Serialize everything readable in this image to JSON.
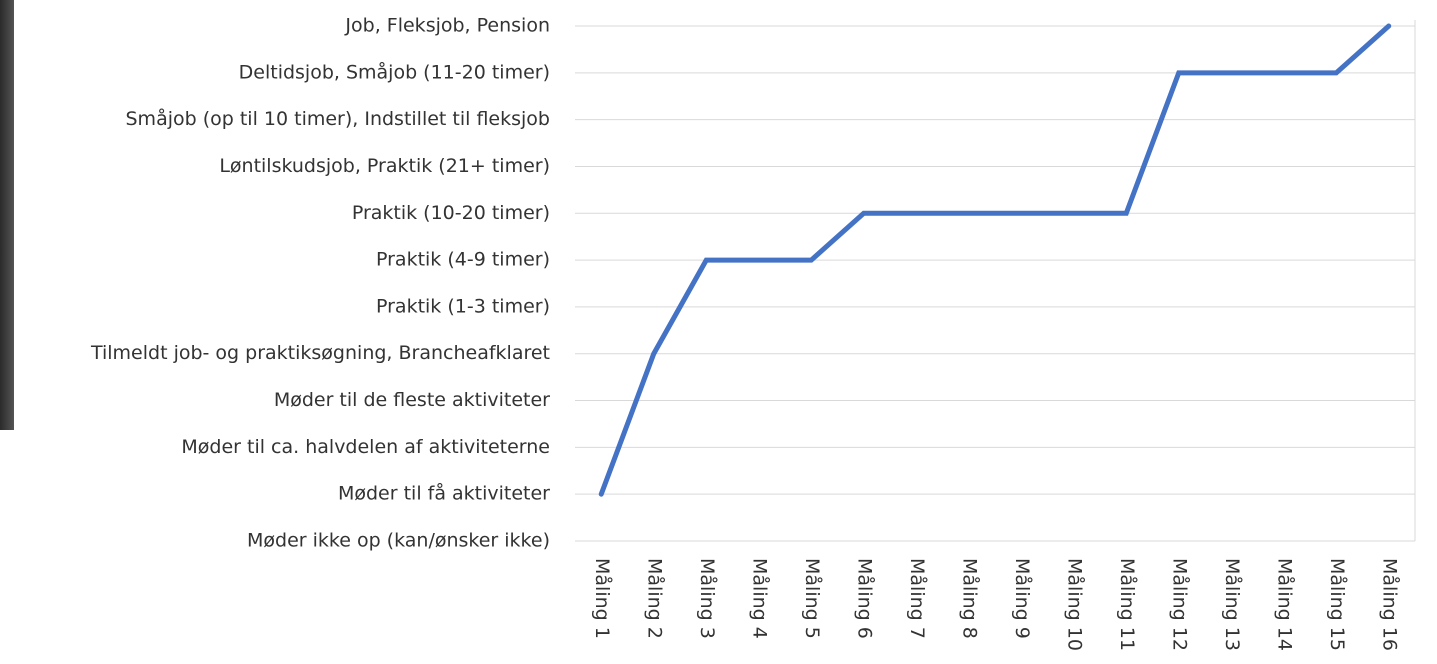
{
  "chart_data": {
    "type": "line",
    "categories": [
      "Måling 1",
      "Måling 2",
      "Måling 3",
      "Måling 4",
      "Måling 5",
      "Måling 6",
      "Måling 7",
      "Måling 8",
      "Måling 9",
      "Måling 10",
      "Måling 11",
      "Måling 12",
      "Måling 13",
      "Måling 14",
      "Måling 15",
      "Måling 16"
    ],
    "values": [
      1,
      4,
      6,
      6,
      6,
      7,
      7,
      7,
      7,
      7,
      7,
      10,
      10,
      10,
      10,
      11
    ],
    "color": "#4472c4",
    "ylim": [
      0,
      11
    ],
    "yticks": [
      {
        "value": 0,
        "label": "Møder ikke op (kan/ønsker ikke)"
      },
      {
        "value": 1,
        "label": "Møder til få aktiviteter"
      },
      {
        "value": 2,
        "label": "Møder til ca. halvdelen af aktiviteterne"
      },
      {
        "value": 3,
        "label": "Møder til de fleste aktiviteter"
      },
      {
        "value": 4,
        "label": "Tilmeldt job- og praktiksøgning, Brancheafklaret"
      },
      {
        "value": 5,
        "label": "Praktik (1-3 timer)"
      },
      {
        "value": 6,
        "label": "Praktik (4-9 timer)"
      },
      {
        "value": 7,
        "label": "Praktik (10-20 timer)"
      },
      {
        "value": 8,
        "label": "Løntilskudsjob, Praktik (21+ timer)"
      },
      {
        "value": 9,
        "label": "Småjob (op til 10 timer), Indstillet til fleksjob"
      },
      {
        "value": 10,
        "label": "Deltidsjob, Småjob (11-20 timer)"
      },
      {
        "value": 11,
        "label": "Job, Fleksjob, Pension"
      }
    ],
    "grid": true
  }
}
